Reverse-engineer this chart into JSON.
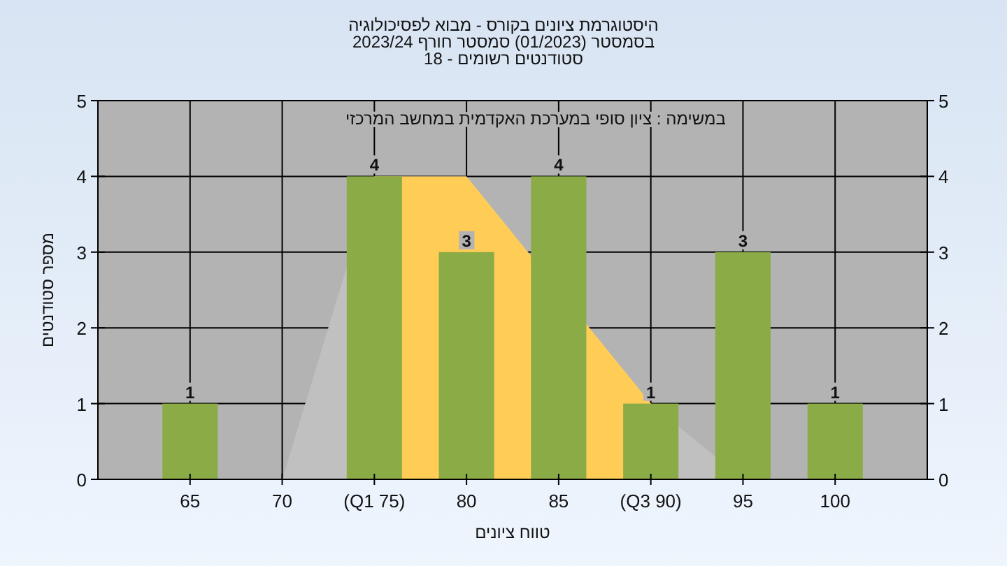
{
  "chart_data": {
    "type": "bar",
    "title": "היסטוגרמת ציונים בקורס - מבוא לפסיכולוגיה",
    "subtitle": "בסמסטר (01/2023) סמסטר חורף 2023/24",
    "annotations": [
      "סטודנטים רשומים - 18",
      "במשימה : ציון סופי במערכת האקדמית במחשב המרכזי"
    ],
    "xlabel": "טווח ציונים",
    "ylabel": "מספר סטודנטים",
    "categories": [
      "65",
      "70",
      "(Q1 75)",
      "80",
      "85",
      "(Q3 90)",
      "95",
      "100"
    ],
    "series": [
      {
        "type": "area",
        "color": "#c0c0c0",
        "values": [
          null,
          0,
          4,
          4,
          null,
          1,
          0,
          null
        ]
      },
      {
        "type": "area",
        "color": "#ffcc55",
        "values": [
          null,
          null,
          4,
          4,
          null,
          1,
          null,
          null
        ]
      },
      {
        "color": "#8aab45",
        "values": [
          1,
          0,
          4,
          3,
          4,
          1,
          3,
          1
        ],
        "value_labels": [
          "1",
          null,
          "4",
          "3",
          "4",
          "1",
          "3",
          "1"
        ]
      }
    ],
    "ylim": [
      0,
      5
    ],
    "yticks": [
      0,
      1,
      2,
      3,
      4,
      5
    ],
    "y2lim": [
      0,
      5
    ],
    "y2ticks": [
      0,
      1,
      2,
      3,
      4,
      5
    ],
    "grid": true
  }
}
